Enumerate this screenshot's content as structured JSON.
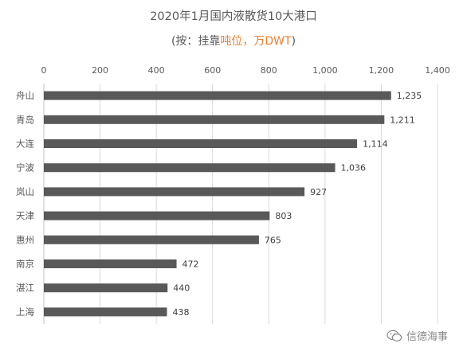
{
  "chart_data": {
    "type": "bar",
    "orientation": "horizontal",
    "title": "2020年1月国内液散货10大港口",
    "subtitle": {
      "prefix": "(按：挂靠",
      "highlight": "吨位，万DWT",
      "suffix": ")"
    },
    "categories": [
      "舟山",
      "青岛",
      "大连",
      "宁波",
      "岚山",
      "天津",
      "惠州",
      "南京",
      "湛江",
      "上海"
    ],
    "values": [
      1235,
      1211,
      1114,
      1036,
      927,
      803,
      765,
      472,
      440,
      438
    ],
    "value_labels": [
      "1,235",
      "1,211",
      "1,114",
      "1,036",
      "927",
      "803",
      "765",
      "472",
      "440",
      "438"
    ],
    "xlim": [
      0,
      1400
    ],
    "ticks": [
      0,
      200,
      400,
      600,
      800,
      1000,
      1200,
      1400
    ],
    "tick_labels": [
      "0",
      "200",
      "400",
      "600",
      "800",
      "1,000",
      "1,200",
      "1,400"
    ],
    "axis_position": "top",
    "grid": true,
    "bar_color": "#595959",
    "grid_color": "#d9d9d9",
    "text_color": "#595959",
    "highlight_color": "#ED7D31"
  },
  "watermark": {
    "icon": "wechat-icon",
    "text": "信德海事"
  }
}
